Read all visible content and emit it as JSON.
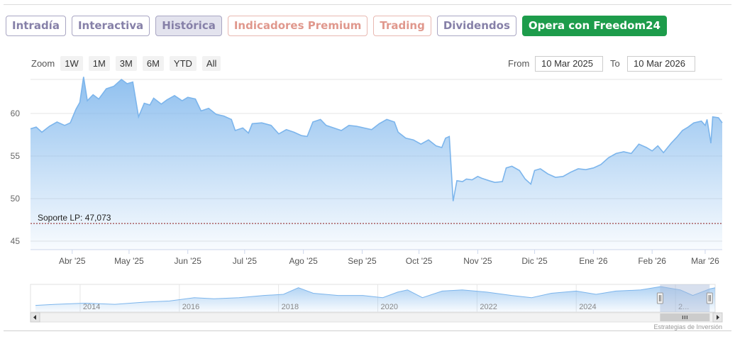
{
  "tabs": [
    {
      "label": "Intradía",
      "style": "purple"
    },
    {
      "label": "Interactiva",
      "style": "purple"
    },
    {
      "label": "Histórica",
      "style": "purple active"
    },
    {
      "label": "Indicadores Premium",
      "style": "salmon"
    },
    {
      "label": "Trading",
      "style": "salmon"
    },
    {
      "label": "Dividendos",
      "style": "purple"
    },
    {
      "label": "Opera con Freedom24",
      "style": "green"
    }
  ],
  "zoom": {
    "label": "Zoom",
    "buttons": [
      "1W",
      "1M",
      "3M",
      "6M",
      "YTD",
      "All"
    ]
  },
  "range": {
    "from_label": "From",
    "from_value": "10 Mar 2025",
    "to_label": "To",
    "to_value": "10 Mar 2026"
  },
  "credit": "Estrategias de Inversión",
  "colors": {
    "line": "#7cb5ec",
    "support": "#8b1a1a",
    "nav_mask": "#a9bbd9"
  },
  "chart_data": {
    "type": "area",
    "title": "",
    "xlabel": "",
    "ylabel": "",
    "ylim": [
      44,
      64
    ],
    "yticks": [
      45,
      50,
      55,
      60
    ],
    "x_range": [
      "2025-03-10",
      "2026-03-10"
    ],
    "x_tick_labels": [
      {
        "date": "2025-04-01",
        "label": "Abr '25"
      },
      {
        "date": "2025-05-01",
        "label": "May '25"
      },
      {
        "date": "2025-06-01",
        "label": "Jun '25"
      },
      {
        "date": "2025-07-01",
        "label": "Jul '25"
      },
      {
        "date": "2025-08-01",
        "label": "Ago '25"
      },
      {
        "date": "2025-09-01",
        "label": "Sep '25"
      },
      {
        "date": "2025-10-01",
        "label": "Oct '25"
      },
      {
        "date": "2025-11-01",
        "label": "Nov '25"
      },
      {
        "date": "2025-12-01",
        "label": "Dic '25"
      },
      {
        "date": "2026-01-01",
        "label": "Ene '26"
      },
      {
        "date": "2026-02-01",
        "label": "Feb '26"
      },
      {
        "date": "2026-03-01",
        "label": "Mar '26"
      }
    ],
    "series": [
      {
        "values": [
          [
            "2025-03-10",
            58.2
          ],
          [
            "2025-03-13",
            58.4
          ],
          [
            "2025-03-16",
            57.8
          ],
          [
            "2025-03-20",
            58.5
          ],
          [
            "2025-03-24",
            59.0
          ],
          [
            "2025-03-28",
            58.6
          ],
          [
            "2025-03-31",
            58.9
          ],
          [
            "2025-04-03",
            60.5
          ],
          [
            "2025-04-05",
            61.3
          ],
          [
            "2025-04-07",
            64.3
          ],
          [
            "2025-04-09",
            61.5
          ],
          [
            "2025-04-12",
            62.2
          ],
          [
            "2025-04-15",
            61.7
          ],
          [
            "2025-04-19",
            62.9
          ],
          [
            "2025-04-23",
            63.2
          ],
          [
            "2025-04-27",
            64.0
          ],
          [
            "2025-04-30",
            63.5
          ],
          [
            "2025-05-03",
            63.7
          ],
          [
            "2025-05-06",
            59.6
          ],
          [
            "2025-05-09",
            61.2
          ],
          [
            "2025-05-12",
            61.0
          ],
          [
            "2025-05-14",
            61.8
          ],
          [
            "2025-05-18",
            61.1
          ],
          [
            "2025-05-21",
            61.6
          ],
          [
            "2025-05-25",
            62.1
          ],
          [
            "2025-05-29",
            61.5
          ],
          [
            "2025-06-01",
            61.9
          ],
          [
            "2025-06-05",
            61.7
          ],
          [
            "2025-06-08",
            60.3
          ],
          [
            "2025-06-12",
            60.6
          ],
          [
            "2025-06-16",
            59.9
          ],
          [
            "2025-06-20",
            59.7
          ],
          [
            "2025-06-24",
            59.3
          ],
          [
            "2025-06-26",
            58.0
          ],
          [
            "2025-06-30",
            58.3
          ],
          [
            "2025-07-03",
            57.7
          ],
          [
            "2025-07-05",
            58.8
          ],
          [
            "2025-07-10",
            58.9
          ],
          [
            "2025-07-15",
            58.6
          ],
          [
            "2025-07-19",
            57.6
          ],
          [
            "2025-07-23",
            58.1
          ],
          [
            "2025-07-27",
            57.8
          ],
          [
            "2025-07-31",
            57.4
          ],
          [
            "2025-08-03",
            57.3
          ],
          [
            "2025-08-06",
            59.0
          ],
          [
            "2025-08-10",
            59.3
          ],
          [
            "2025-08-13",
            58.6
          ],
          [
            "2025-08-17",
            58.3
          ],
          [
            "2025-08-21",
            58.0
          ],
          [
            "2025-08-25",
            58.6
          ],
          [
            "2025-08-29",
            58.5
          ],
          [
            "2025-09-02",
            58.3
          ],
          [
            "2025-09-06",
            58.1
          ],
          [
            "2025-09-10",
            58.8
          ],
          [
            "2025-09-14",
            59.3
          ],
          [
            "2025-09-18",
            59.0
          ],
          [
            "2025-09-20",
            57.8
          ],
          [
            "2025-09-24",
            57.1
          ],
          [
            "2025-09-28",
            56.9
          ],
          [
            "2025-10-02",
            56.4
          ],
          [
            "2025-10-06",
            56.9
          ],
          [
            "2025-10-10",
            56.2
          ],
          [
            "2025-10-13",
            56.0
          ],
          [
            "2025-10-15",
            57.1
          ],
          [
            "2025-10-17",
            57.3
          ],
          [
            "2025-10-19",
            49.7
          ],
          [
            "2025-10-21",
            52.1
          ],
          [
            "2025-10-24",
            52.0
          ],
          [
            "2025-10-26",
            52.3
          ],
          [
            "2025-10-29",
            52.2
          ],
          [
            "2025-11-01",
            52.6
          ],
          [
            "2025-11-03",
            52.4
          ],
          [
            "2025-11-07",
            52.1
          ],
          [
            "2025-11-10",
            51.9
          ],
          [
            "2025-11-14",
            52.0
          ],
          [
            "2025-11-16",
            53.6
          ],
          [
            "2025-11-19",
            53.8
          ],
          [
            "2025-11-23",
            53.3
          ],
          [
            "2025-11-26",
            52.3
          ],
          [
            "2025-11-29",
            51.7
          ],
          [
            "2025-12-01",
            53.3
          ],
          [
            "2025-12-04",
            53.5
          ],
          [
            "2025-12-08",
            52.9
          ],
          [
            "2025-12-12",
            52.5
          ],
          [
            "2025-12-16",
            52.6
          ],
          [
            "2025-12-20",
            53.1
          ],
          [
            "2025-12-24",
            53.5
          ],
          [
            "2025-12-28",
            53.4
          ],
          [
            "2026-01-01",
            53.6
          ],
          [
            "2026-01-05",
            54.0
          ],
          [
            "2026-01-09",
            54.8
          ],
          [
            "2026-01-13",
            55.3
          ],
          [
            "2026-01-17",
            55.5
          ],
          [
            "2026-01-21",
            55.3
          ],
          [
            "2026-01-25",
            56.4
          ],
          [
            "2026-01-29",
            56.0
          ],
          [
            "2026-02-01",
            55.6
          ],
          [
            "2026-02-04",
            56.2
          ],
          [
            "2026-02-07",
            55.4
          ],
          [
            "2026-02-11",
            56.5
          ],
          [
            "2026-02-14",
            57.2
          ],
          [
            "2026-02-17",
            58.0
          ],
          [
            "2026-02-20",
            58.4
          ],
          [
            "2026-02-23",
            58.9
          ],
          [
            "2026-02-27",
            59.1
          ],
          [
            "2026-03-01",
            58.6
          ],
          [
            "2026-03-02",
            59.3
          ],
          [
            "2026-03-04",
            56.5
          ],
          [
            "2026-03-05",
            59.6
          ],
          [
            "2026-03-08",
            59.5
          ],
          [
            "2026-03-10",
            58.9
          ]
        ]
      }
    ],
    "plot_lines": [
      {
        "value": 47.073,
        "label": "Soporte LP: 47,073"
      }
    ],
    "navigator": {
      "year_labels": [
        "2014",
        "2016",
        "2018",
        "2020",
        "2022",
        "2024",
        "2..."
      ],
      "year_ticks": [
        2013.5,
        2015.5,
        2017.5,
        2019.5,
        2021.5,
        2023.5,
        2025.5
      ],
      "range_years": [
        2012.5,
        2026.3
      ],
      "values": [
        [
          2012.6,
          31
        ],
        [
          2013.0,
          32
        ],
        [
          2013.6,
          33
        ],
        [
          2014.2,
          32
        ],
        [
          2014.8,
          34
        ],
        [
          2015.3,
          35
        ],
        [
          2015.8,
          38
        ],
        [
          2016.2,
          37
        ],
        [
          2016.7,
          38
        ],
        [
          2017.2,
          40
        ],
        [
          2017.6,
          41
        ],
        [
          2017.9,
          47
        ],
        [
          2018.2,
          42
        ],
        [
          2018.7,
          40
        ],
        [
          2019.2,
          40
        ],
        [
          2019.6,
          38
        ],
        [
          2019.9,
          43
        ],
        [
          2020.1,
          45
        ],
        [
          2020.4,
          38
        ],
        [
          2020.8,
          44
        ],
        [
          2021.2,
          45
        ],
        [
          2021.7,
          43
        ],
        [
          2022.2,
          40
        ],
        [
          2022.6,
          38
        ],
        [
          2023.0,
          42
        ],
        [
          2023.5,
          44
        ],
        [
          2023.9,
          41
        ],
        [
          2024.3,
          44
        ],
        [
          2024.8,
          45
        ],
        [
          2025.2,
          48
        ],
        [
          2025.6,
          45
        ],
        [
          2025.85,
          40
        ],
        [
          2026.2,
          46
        ],
        [
          2026.3,
          47
        ]
      ],
      "selected_years": [
        2025.19,
        2026.19
      ]
    }
  }
}
